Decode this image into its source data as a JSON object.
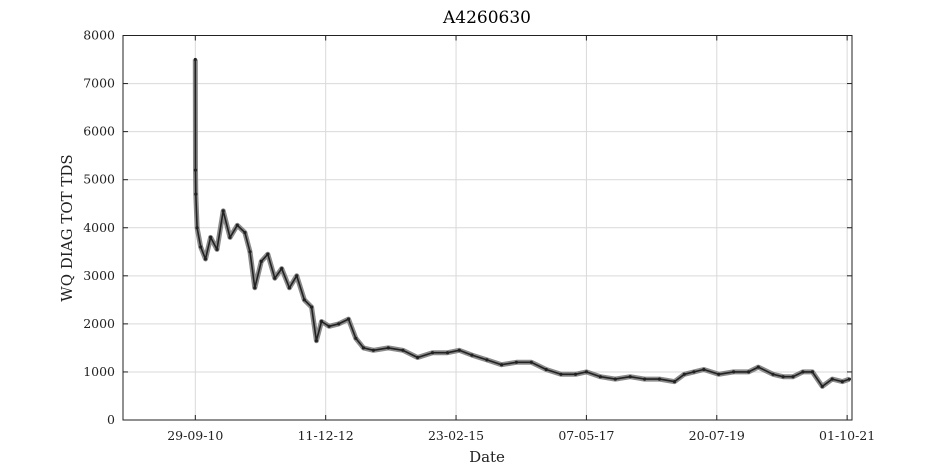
{
  "chart_data": {
    "type": "line",
    "title": "A4260630",
    "xlabel": "Date",
    "ylabel": "WQ DIAG TOT TDS",
    "ylim": [
      0,
      8000
    ],
    "xlim": [
      "2009-07-10",
      "2021-10-31"
    ],
    "grid": true,
    "x_ticks": [
      {
        "date": "2010-09-29",
        "label": "29-09-10"
      },
      {
        "date": "2012-12-11",
        "label": "11-12-12"
      },
      {
        "date": "2015-02-23",
        "label": "23-02-15"
      },
      {
        "date": "2017-05-07",
        "label": "07-05-17"
      },
      {
        "date": "2019-07-20",
        "label": "20-07-19"
      },
      {
        "date": "2021-10-01",
        "label": "01-10-21"
      }
    ],
    "y_ticks": [
      0,
      1000,
      2000,
      3000,
      4000,
      5000,
      6000,
      7000,
      8000
    ],
    "series": [
      {
        "color": "#222222",
        "points": [
          [
            "2010-09-29",
            7500
          ],
          [
            "2010-09-30",
            5200
          ],
          [
            "2010-10-02",
            4700
          ],
          [
            "2010-10-10",
            4000
          ],
          [
            "2010-11-01",
            3600
          ],
          [
            "2010-12-01",
            3350
          ],
          [
            "2011-01-01",
            3800
          ],
          [
            "2011-02-10",
            3550
          ],
          [
            "2011-03-20",
            4350
          ],
          [
            "2011-05-01",
            3800
          ],
          [
            "2011-06-15",
            4050
          ],
          [
            "2011-08-01",
            3900
          ],
          [
            "2011-09-01",
            3500
          ],
          [
            "2011-10-01",
            2750
          ],
          [
            "2011-11-10",
            3300
          ],
          [
            "2011-12-20",
            3450
          ],
          [
            "2012-02-01",
            2950
          ],
          [
            "2012-03-15",
            3150
          ],
          [
            "2012-05-01",
            2750
          ],
          [
            "2012-06-15",
            3000
          ],
          [
            "2012-08-01",
            2500
          ],
          [
            "2012-09-15",
            2350
          ],
          [
            "2012-10-15",
            1650
          ],
          [
            "2012-11-15",
            2050
          ],
          [
            "2013-01-01",
            1950
          ],
          [
            "2013-03-01",
            2000
          ],
          [
            "2013-05-01",
            2100
          ],
          [
            "2013-06-15",
            1700
          ],
          [
            "2013-08-01",
            1500
          ],
          [
            "2013-10-01",
            1450
          ],
          [
            "2014-01-01",
            1500
          ],
          [
            "2014-04-01",
            1450
          ],
          [
            "2014-07-01",
            1300
          ],
          [
            "2014-10-01",
            1400
          ],
          [
            "2015-01-01",
            1400
          ],
          [
            "2015-03-15",
            1450
          ],
          [
            "2015-06-01",
            1350
          ],
          [
            "2015-09-01",
            1250
          ],
          [
            "2015-12-01",
            1150
          ],
          [
            "2016-03-01",
            1200
          ],
          [
            "2016-06-01",
            1200
          ],
          [
            "2016-09-01",
            1050
          ],
          [
            "2016-12-01",
            950
          ],
          [
            "2017-03-01",
            950
          ],
          [
            "2017-05-07",
            1000
          ],
          [
            "2017-08-01",
            900
          ],
          [
            "2017-11-01",
            850
          ],
          [
            "2018-02-01",
            900
          ],
          [
            "2018-05-01",
            850
          ],
          [
            "2018-08-01",
            850
          ],
          [
            "2018-11-01",
            800
          ],
          [
            "2019-01-01",
            950
          ],
          [
            "2019-03-01",
            1000
          ],
          [
            "2019-05-01",
            1050
          ],
          [
            "2019-08-01",
            950
          ],
          [
            "2019-11-01",
            1000
          ],
          [
            "2020-02-01",
            1000
          ],
          [
            "2020-04-01",
            1100
          ],
          [
            "2020-07-01",
            950
          ],
          [
            "2020-09-01",
            900
          ],
          [
            "2020-11-01",
            900
          ],
          [
            "2021-01-01",
            1000
          ],
          [
            "2021-03-01",
            1000
          ],
          [
            "2021-05-01",
            700
          ],
          [
            "2021-07-01",
            850
          ],
          [
            "2021-09-01",
            800
          ],
          [
            "2021-10-15",
            850
          ]
        ]
      }
    ]
  }
}
